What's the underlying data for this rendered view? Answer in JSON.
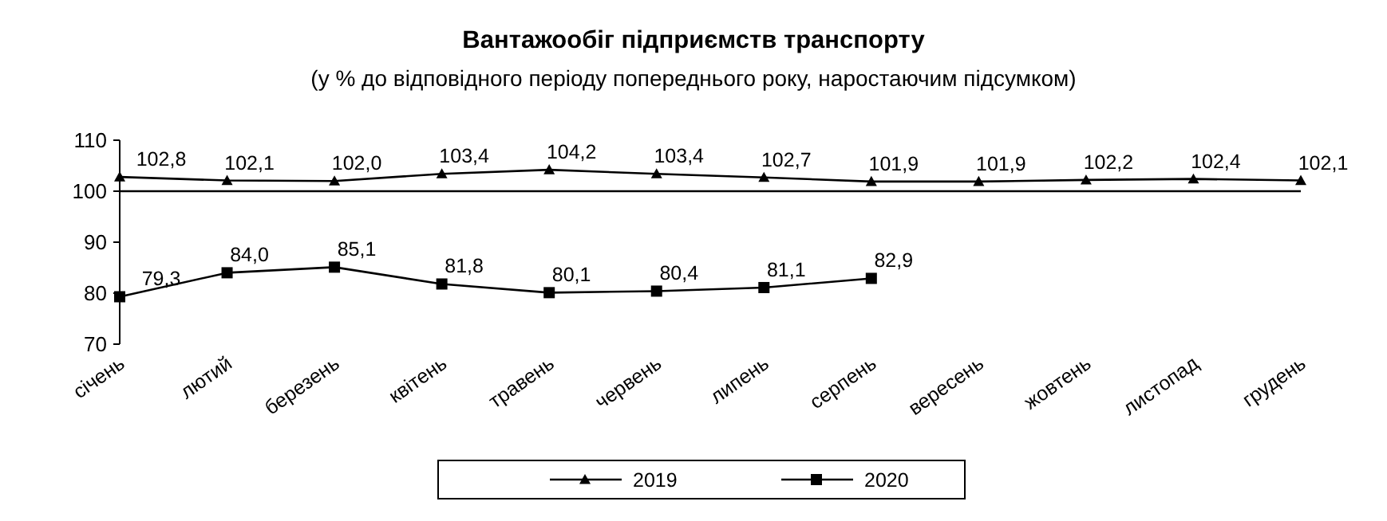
{
  "chart_data": {
    "type": "line",
    "title": "Вантажообіг підприємств транспорту",
    "subtitle": "(у % до відповідного періоду попереднього року, наростаючим підсумком)",
    "categories": [
      "січень",
      "лютий",
      "березень",
      "квітень",
      "травень",
      "червень",
      "липень",
      "серпень",
      "вересень",
      "жовтень",
      "листопад",
      "грудень"
    ],
    "series": [
      {
        "name": "2019",
        "color": "#000000",
        "marker": "triangle",
        "values": [
          102.8,
          102.1,
          102.0,
          103.4,
          104.2,
          103.4,
          102.7,
          101.9,
          101.9,
          102.2,
          102.4,
          102.1
        ],
        "value_labels": [
          "102,8",
          "102,1",
          "102,0",
          "103,4",
          "104,2",
          "103,4",
          "102,7",
          "101,9",
          "101,9",
          "102,2",
          "102,4",
          "102,1"
        ]
      },
      {
        "name": "2020",
        "color": "#000000",
        "marker": "square",
        "values": [
          79.3,
          84.0,
          85.1,
          81.8,
          80.1,
          80.4,
          81.1,
          82.9,
          null,
          null,
          null,
          null
        ],
        "value_labels": [
          "79,3",
          "84,0",
          "85,1",
          "81,8",
          "80,1",
          "80,4",
          "81,1",
          "82,9",
          null,
          null,
          null,
          null
        ]
      }
    ],
    "ylim": [
      70,
      110
    ],
    "yticks": [
      70,
      80,
      90,
      100,
      110
    ],
    "grid": false,
    "legend": "bottom",
    "line_style": "solid",
    "ref_lines": [
      {
        "axis": "y",
        "value": 100
      }
    ]
  }
}
